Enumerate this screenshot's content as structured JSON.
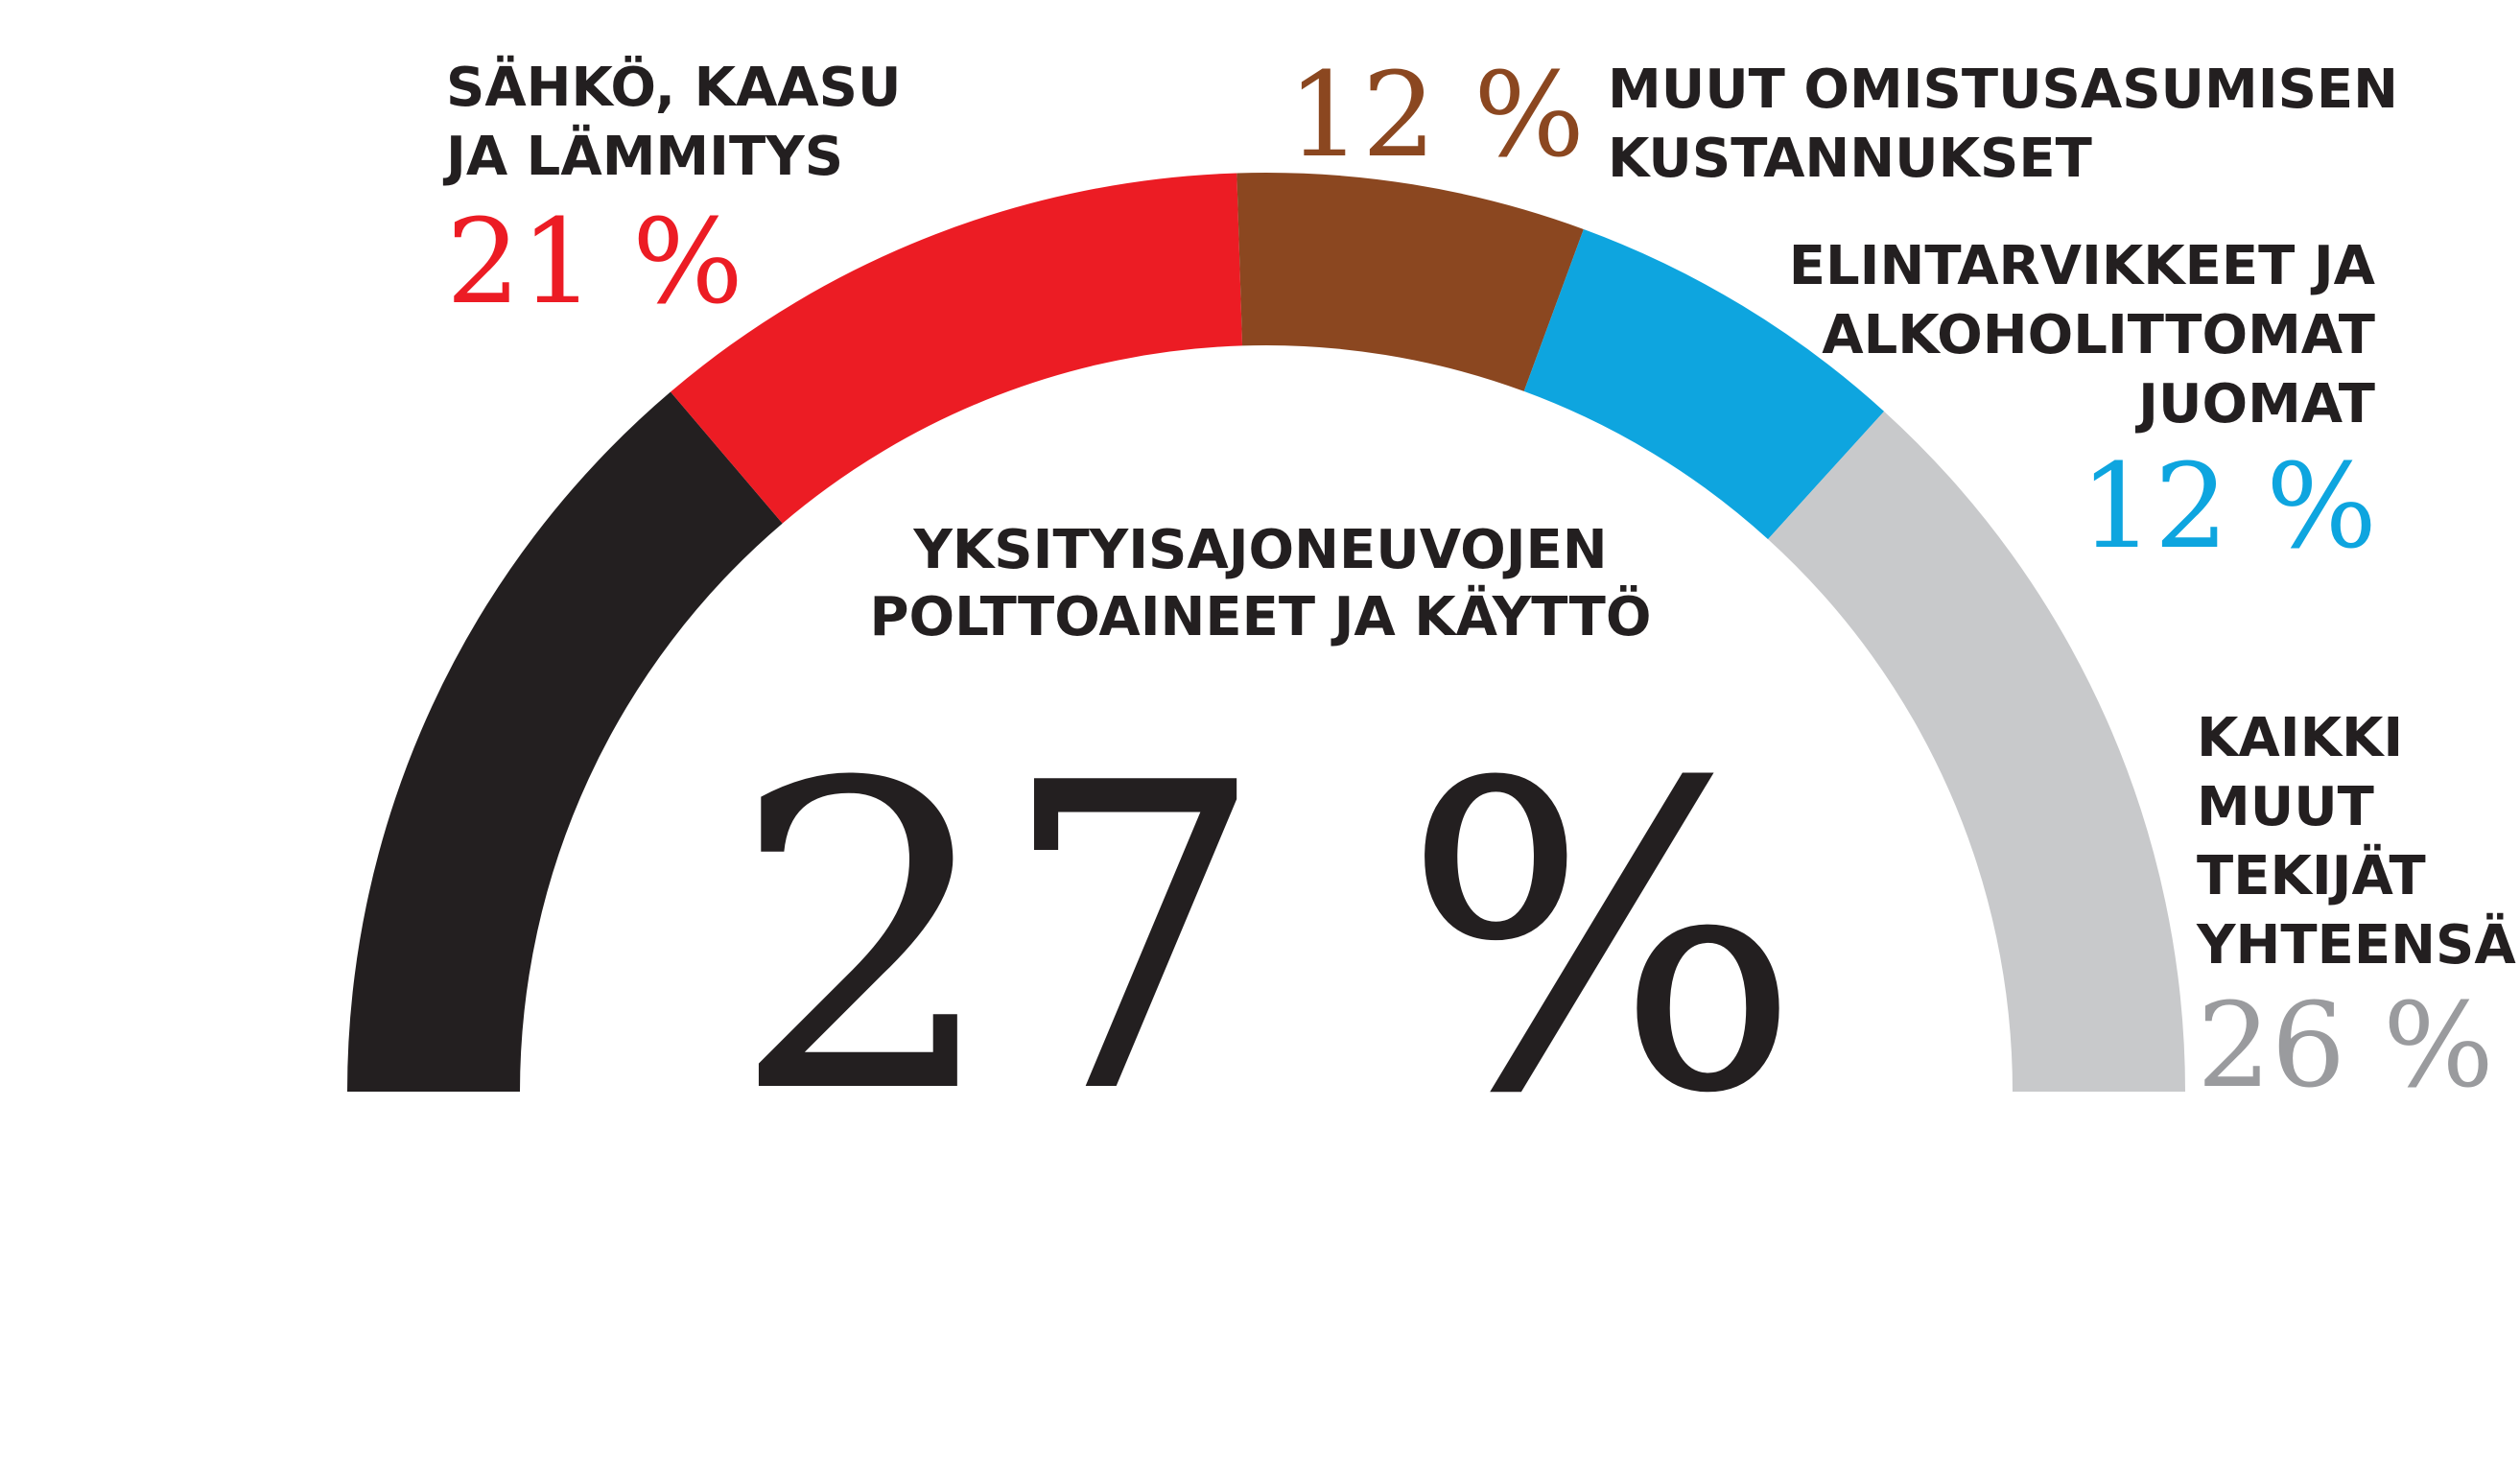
{
  "chart_data": {
    "type": "pie",
    "variant": "half-donut",
    "title": "",
    "slices": [
      {
        "label_lines": [
          "YKSITYISAJONEUVOJEN",
          "POLTTOAINEET JA KÄYTTÖ"
        ],
        "value": 27,
        "value_text": "27 %",
        "color": "#231f20"
      },
      {
        "label_lines": [
          "SÄHKÖ, KAASU",
          "JA LÄMMITYS"
        ],
        "value": 21,
        "value_text": "21 %",
        "color": "#ec1c24"
      },
      {
        "label_lines": [
          "MUUT OMISTUSASUMISEN",
          "KUSTANNUKSET"
        ],
        "value": 12,
        "value_text": "12 %",
        "color": "#8b4720"
      },
      {
        "label_lines": [
          "ELINTARVIKKEET JA",
          "ALKOHOLITTOMAT",
          "JUOMAT"
        ],
        "value": 12,
        "value_text": "12 %",
        "color": "#0ea5df"
      },
      {
        "label_lines": [
          "KAIKKI",
          "MUUT",
          "TEKIJÄT",
          "YHTEENSÄ"
        ],
        "value": 26,
        "value_text": "26 %",
        "color": "#c8c9cb",
        "value_color": "#9a9b9e"
      }
    ]
  }
}
